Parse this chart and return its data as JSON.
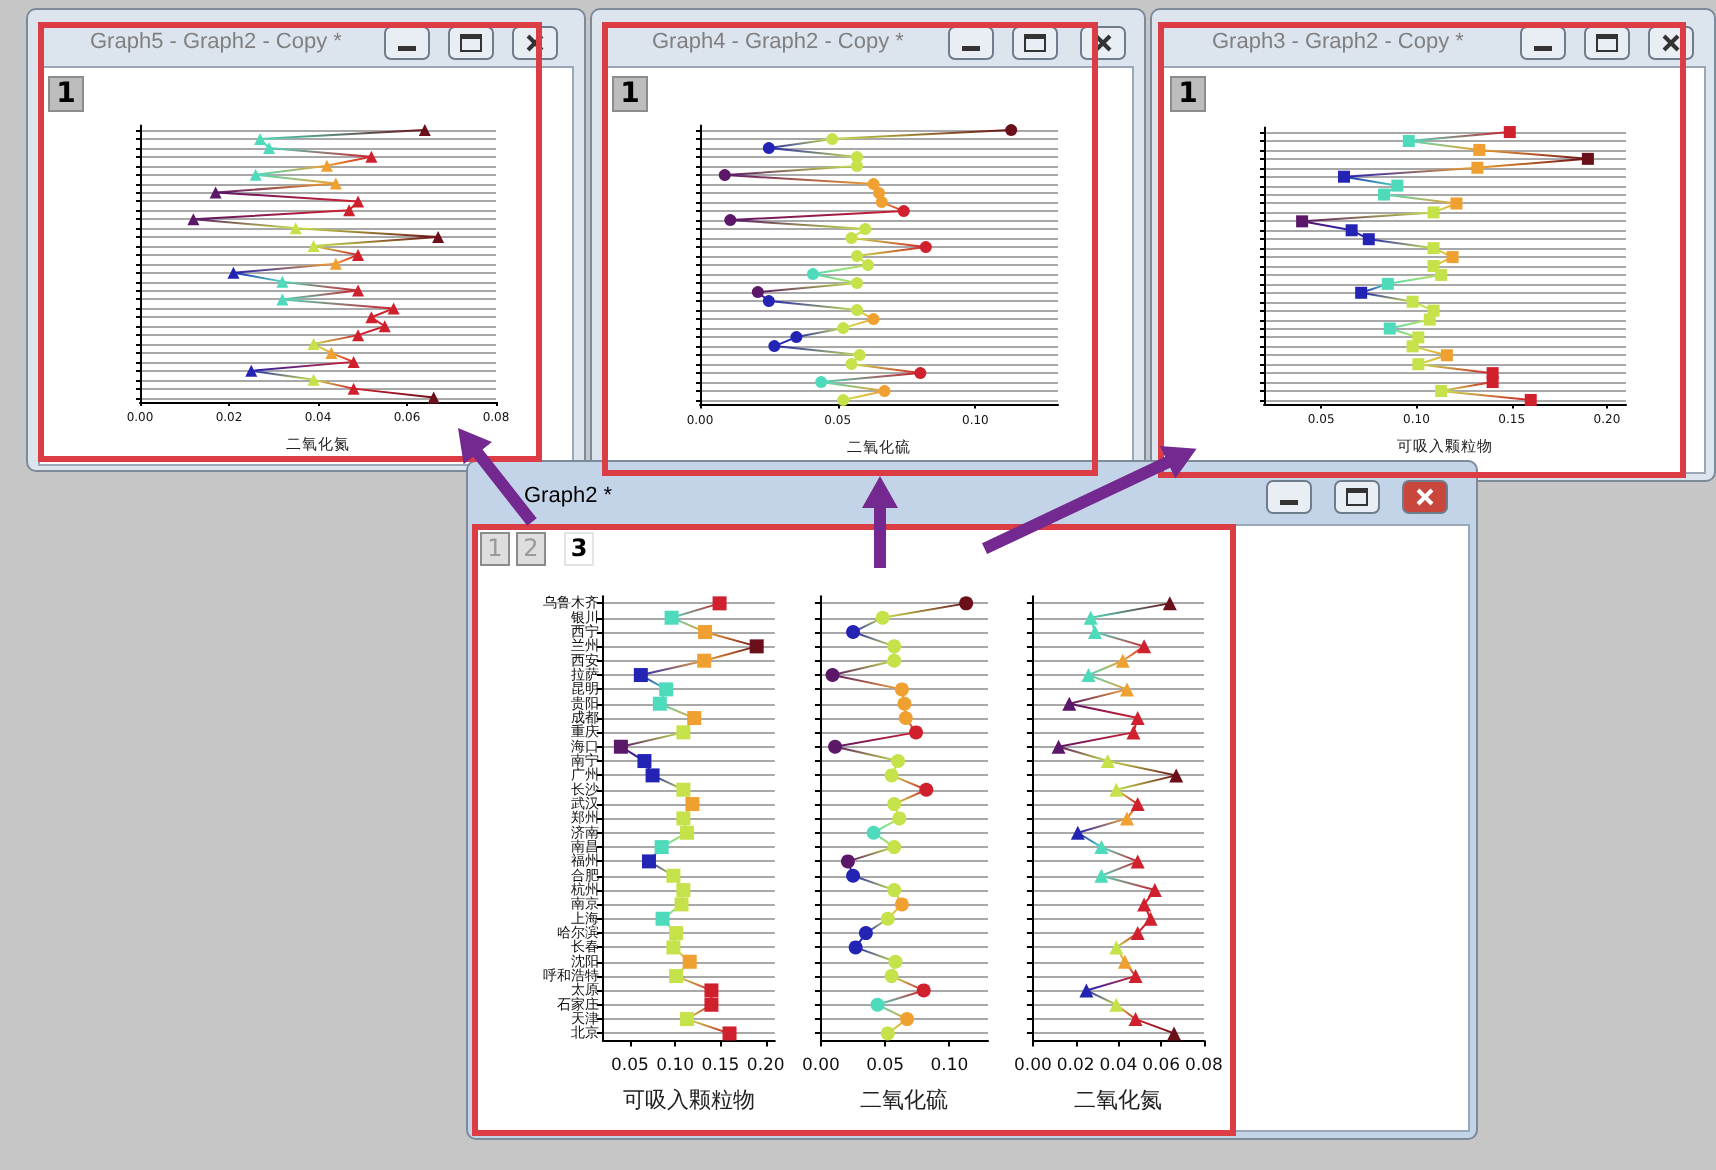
{
  "chart_data": [
    {
      "type": "line",
      "title": "Graph5 - Graph2 - Copy *",
      "annotations": [
        "1"
      ],
      "orientation": "horizontal",
      "categories": [
        null,
        null,
        null,
        null,
        null,
        null,
        null,
        null,
        null,
        null,
        null,
        null,
        null,
        null,
        null,
        null,
        null,
        null,
        null,
        null,
        null,
        null,
        null,
        null,
        null,
        null,
        null,
        null,
        null,
        null,
        null
      ],
      "values": [
        0.064,
        0.027,
        0.029,
        0.052,
        0.042,
        0.026,
        0.044,
        0.017,
        0.049,
        0.047,
        0.012,
        0.035,
        0.067,
        0.039,
        0.049,
        0.044,
        0.021,
        0.032,
        0.049,
        0.032,
        0.057,
        0.052,
        0.055,
        0.049,
        0.039,
        0.043,
        0.048,
        0.025,
        0.039,
        0.048,
        0.066
      ],
      "colors": [
        "#6b0f1a",
        "#4ddbbb",
        "#4ddbbb",
        "#d0202e",
        "#f0a030",
        "#4ddbbb",
        "#f0a030",
        "#5b1768",
        "#d0202e",
        "#d0202e",
        "#5b1768",
        "#c6e24a",
        "#6b0f1a",
        "#c6e24a",
        "#d0202e",
        "#f0a030",
        "#2424b4",
        "#4ddbbb",
        "#d0202e",
        "#4ddbbb",
        "#d0202e",
        "#d0202e",
        "#d0202e",
        "#d0202e",
        "#c6e24a",
        "#f0a030",
        "#d0202e",
        "#2424b4",
        "#c6e24a",
        "#d0202e",
        "#6b0f1a"
      ],
      "marker": "triangle",
      "xlabel": "二氧化氮",
      "xlim": [
        0,
        0.08
      ],
      "xticks": [
        {
          "value": 0,
          "label": "0.00"
        },
        0.02,
        0.04,
        0.06,
        0.08
      ],
      "grid": "y"
    },
    {
      "type": "line",
      "title": "Graph4 - Graph2 - Copy *",
      "annotations": [
        "1"
      ],
      "orientation": "horizontal",
      "categories": [
        null,
        null,
        null,
        null,
        null,
        null,
        null,
        null,
        null,
        null,
        null,
        null,
        null,
        null,
        null,
        null,
        null,
        null,
        null,
        null,
        null,
        null,
        null,
        null,
        null,
        null,
        null,
        null,
        null,
        null,
        null
      ],
      "values": [
        0.113,
        0.048,
        0.025,
        0.057,
        0.057,
        0.009,
        0.063,
        0.065,
        0.066,
        0.074,
        0.011,
        0.06,
        0.055,
        0.082,
        0.057,
        0.061,
        0.041,
        0.057,
        0.021,
        0.025,
        0.057,
        0.063,
        0.052,
        0.035,
        0.027,
        0.058,
        0.055,
        0.08,
        0.044,
        0.067,
        0.052
      ],
      "colors": [
        "#6b0f1a",
        "#c6e24a",
        "#2424b4",
        "#c6e24a",
        "#c6e24a",
        "#5b1768",
        "#f0a030",
        "#f0a030",
        "#f0a030",
        "#d0202e",
        "#5b1768",
        "#c6e24a",
        "#c6e24a",
        "#d0202e",
        "#c6e24a",
        "#c6e24a",
        "#4ddbbb",
        "#c6e24a",
        "#5b1768",
        "#2424b4",
        "#c6e24a",
        "#f0a030",
        "#c6e24a",
        "#2424b4",
        "#2424b4",
        "#c6e24a",
        "#c6e24a",
        "#d0202e",
        "#4ddbbb",
        "#f0a030",
        "#c6e24a"
      ],
      "marker": "circle",
      "xlabel": "二氧化硫",
      "xlim": [
        0,
        0.13
      ],
      "xticks": [
        {
          "value": 0,
          "label": "0.00"
        },
        0.05,
        {
          "value": 0.1,
          "label": "0.10"
        }
      ],
      "grid": "y"
    },
    {
      "type": "line",
      "title": "Graph3 - Graph2 - Copy *",
      "annotations": [
        "1"
      ],
      "orientation": "horizontal",
      "categories": [
        null,
        null,
        null,
        null,
        null,
        null,
        null,
        null,
        null,
        null,
        null,
        null,
        null,
        null,
        null,
        null,
        null,
        null,
        null,
        null,
        null,
        null,
        null,
        null,
        null,
        null,
        null,
        null,
        null,
        null,
        null
      ],
      "values": [
        0.149,
        0.096,
        0.133,
        0.19,
        0.132,
        0.062,
        0.09,
        0.083,
        0.121,
        0.109,
        0.04,
        0.066,
        0.075,
        0.109,
        0.119,
        0.109,
        0.113,
        0.085,
        0.071,
        0.098,
        0.109,
        0.107,
        0.086,
        0.101,
        0.098,
        0.116,
        0.101,
        0.14,
        0.14,
        0.113,
        0.16
      ],
      "colors": [
        "#d0202e",
        "#4ddbbb",
        "#f0a030",
        "#6b0f1a",
        "#f0a030",
        "#2424b4",
        "#4ddbbb",
        "#4ddbbb",
        "#f0a030",
        "#c6e24a",
        "#5b1768",
        "#2424b4",
        "#2424b4",
        "#c6e24a",
        "#f0a030",
        "#c6e24a",
        "#c6e24a",
        "#4ddbbb",
        "#2424b4",
        "#c6e24a",
        "#c6e24a",
        "#c6e24a",
        "#4ddbbb",
        "#c6e24a",
        "#c6e24a",
        "#f0a030",
        "#c6e24a",
        "#d0202e",
        "#d0202e",
        "#c6e24a",
        "#d0202e"
      ],
      "marker": "square",
      "xlabel": "可吸入颗粒物",
      "xlim": [
        0.02,
        0.21
      ],
      "xticks": [
        0.05,
        {
          "value": 0.1,
          "label": "0.10"
        },
        0.15,
        {
          "value": 0.2,
          "label": "0.20"
        }
      ],
      "grid": "y"
    },
    {
      "type": "line",
      "title": "Graph2 *",
      "annotations": [
        "1"
      ],
      "orientation": "horizontal",
      "categories": [
        "乌鲁木齐",
        "银川",
        "西宁",
        "兰州",
        "西安",
        "拉萨",
        "昆明",
        "贵阳",
        "成都",
        "重庆",
        "海口",
        "南宁",
        "广州",
        "长沙",
        "武汉",
        "郑州",
        "济南",
        "南昌",
        "福州",
        "合肥",
        "杭州",
        "南京",
        "上海",
        "哈尔滨",
        "长春",
        "沈阳",
        "呼和浩特",
        "太原",
        "石家庄",
        "天津",
        "北京"
      ],
      "values": [
        0.149,
        0.096,
        0.133,
        0.19,
        0.132,
        0.062,
        0.09,
        0.083,
        0.121,
        0.109,
        0.04,
        0.066,
        0.075,
        0.109,
        0.119,
        0.109,
        0.113,
        0.085,
        0.071,
        0.098,
        0.109,
        0.107,
        0.086,
        0.101,
        0.098,
        0.116,
        0.101,
        0.14,
        0.14,
        0.113,
        0.16
      ],
      "colors": [
        "#d0202e",
        "#4ddbbb",
        "#f0a030",
        "#6b0f1a",
        "#f0a030",
        "#2424b4",
        "#4ddbbb",
        "#4ddbbb",
        "#f0a030",
        "#c6e24a",
        "#5b1768",
        "#2424b4",
        "#2424b4",
        "#c6e24a",
        "#f0a030",
        "#c6e24a",
        "#c6e24a",
        "#4ddbbb",
        "#2424b4",
        "#c6e24a",
        "#c6e24a",
        "#c6e24a",
        "#4ddbbb",
        "#c6e24a",
        "#c6e24a",
        "#f0a030",
        "#c6e24a",
        "#d0202e",
        "#d0202e",
        "#c6e24a",
        "#d0202e"
      ],
      "marker": "square",
      "xlabel": "可吸入颗粒物",
      "xlim": [
        0.02,
        0.21
      ],
      "xticks": [
        0.05,
        {
          "value": 0.1,
          "label": "0.10"
        },
        0.15,
        {
          "value": 0.2,
          "label": "0.20"
        }
      ],
      "grid": "y"
    },
    {
      "type": "line",
      "annotations": [
        "2"
      ],
      "orientation": "horizontal",
      "categories": [
        null,
        null,
        null,
        null,
        null,
        null,
        null,
        null,
        null,
        null,
        null,
        null,
        null,
        null,
        null,
        null,
        null,
        null,
        null,
        null,
        null,
        null,
        null,
        null,
        null,
        null,
        null,
        null,
        null,
        null,
        null
      ],
      "values": [
        0.113,
        0.048,
        0.025,
        0.057,
        0.057,
        0.009,
        0.063,
        0.065,
        0.066,
        0.074,
        0.011,
        0.06,
        0.055,
        0.082,
        0.057,
        0.061,
        0.041,
        0.057,
        0.021,
        0.025,
        0.057,
        0.063,
        0.052,
        0.035,
        0.027,
        0.058,
        0.055,
        0.08,
        0.044,
        0.067,
        0.052
      ],
      "colors": [
        "#6b0f1a",
        "#c6e24a",
        "#2424b4",
        "#c6e24a",
        "#c6e24a",
        "#5b1768",
        "#f0a030",
        "#f0a030",
        "#f0a030",
        "#d0202e",
        "#5b1768",
        "#c6e24a",
        "#c6e24a",
        "#d0202e",
        "#c6e24a",
        "#c6e24a",
        "#4ddbbb",
        "#c6e24a",
        "#5b1768",
        "#2424b4",
        "#c6e24a",
        "#f0a030",
        "#c6e24a",
        "#2424b4",
        "#2424b4",
        "#c6e24a",
        "#c6e24a",
        "#d0202e",
        "#4ddbbb",
        "#f0a030",
        "#c6e24a"
      ],
      "marker": "circle",
      "xlabel": "二氧化硫",
      "xlim": [
        0,
        0.13
      ],
      "xticks": [
        {
          "value": 0,
          "label": "0.00"
        },
        0.05,
        {
          "value": 0.1,
          "label": "0.10"
        }
      ],
      "grid": "y"
    },
    {
      "type": "line",
      "annotations": [
        "3"
      ],
      "orientation": "horizontal",
      "categories": [
        null,
        null,
        null,
        null,
        null,
        null,
        null,
        null,
        null,
        null,
        null,
        null,
        null,
        null,
        null,
        null,
        null,
        null,
        null,
        null,
        null,
        null,
        null,
        null,
        null,
        null,
        null,
        null,
        null,
        null,
        null
      ],
      "values": [
        0.064,
        0.027,
        0.029,
        0.052,
        0.042,
        0.026,
        0.044,
        0.017,
        0.049,
        0.047,
        0.012,
        0.035,
        0.067,
        0.039,
        0.049,
        0.044,
        0.021,
        0.032,
        0.049,
        0.032,
        0.057,
        0.052,
        0.055,
        0.049,
        0.039,
        0.043,
        0.048,
        0.025,
        0.039,
        0.048,
        0.066
      ],
      "colors": [
        "#6b0f1a",
        "#4ddbbb",
        "#4ddbbb",
        "#d0202e",
        "#f0a030",
        "#4ddbbb",
        "#f0a030",
        "#5b1768",
        "#d0202e",
        "#d0202e",
        "#5b1768",
        "#c6e24a",
        "#6b0f1a",
        "#c6e24a",
        "#d0202e",
        "#f0a030",
        "#2424b4",
        "#4ddbbb",
        "#d0202e",
        "#4ddbbb",
        "#d0202e",
        "#d0202e",
        "#d0202e",
        "#d0202e",
        "#c6e24a",
        "#f0a030",
        "#d0202e",
        "#2424b4",
        "#c6e24a",
        "#d0202e",
        "#6b0f1a"
      ],
      "marker": "triangle",
      "xlabel": "二氧化氮",
      "xlim": [
        0,
        0.08
      ],
      "xticks": [
        {
          "value": 0,
          "label": "0.00"
        },
        0.02,
        0.04,
        0.06,
        0.08
      ],
      "grid": "y"
    }
  ]
}
